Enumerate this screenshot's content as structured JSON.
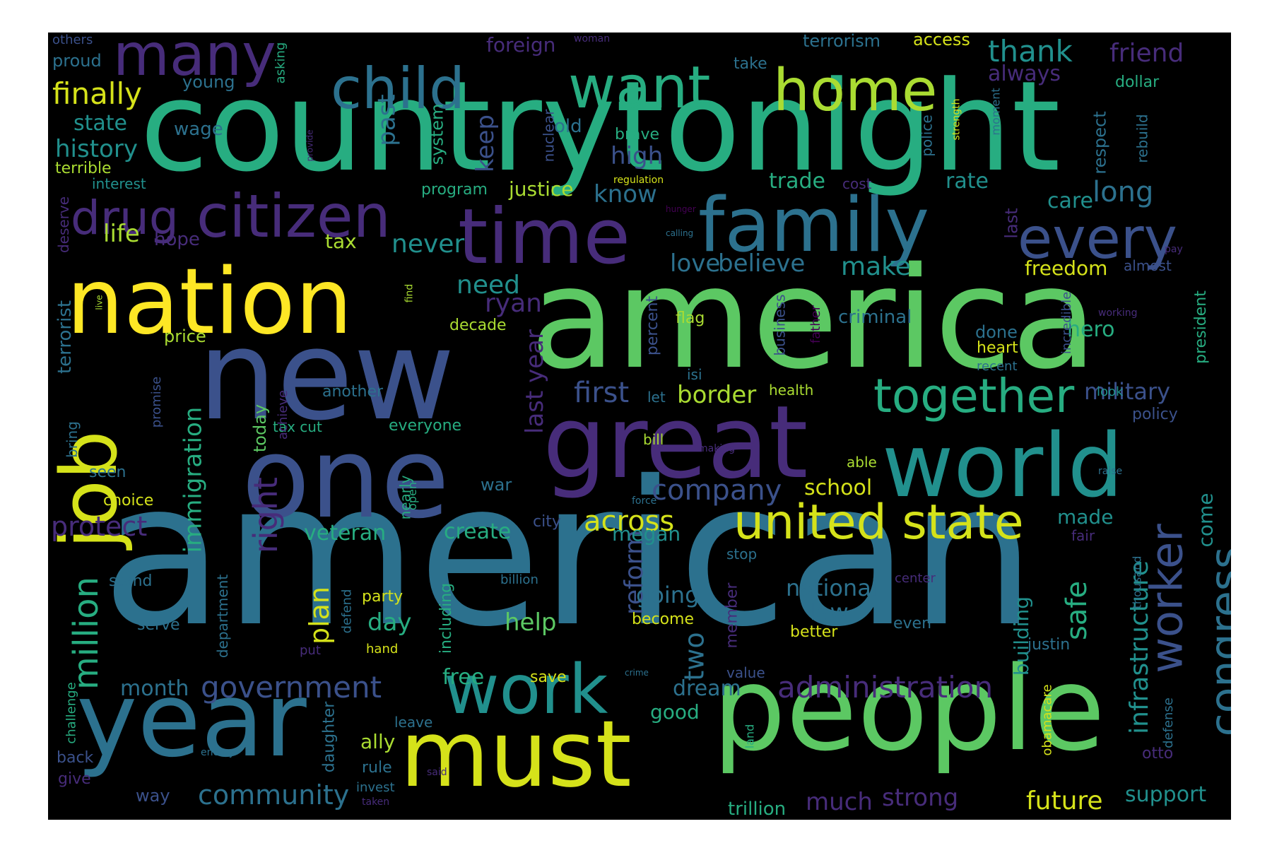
{
  "colors": {
    "background": "#000000",
    "page": "#ffffff",
    "palette": [
      "#440154",
      "#472c7a",
      "#3b518b",
      "#2c718e",
      "#21908d",
      "#27ad81",
      "#5cc863",
      "#aadc32",
      "#fde725"
    ]
  },
  "words": [
    {
      "text": "american",
      "color": "#2c718e"
    },
    {
      "text": "america",
      "color": "#5cc863"
    },
    {
      "text": "countrytonight",
      "color": "#27ad81"
    },
    {
      "text": "new",
      "color": "#3b518b"
    },
    {
      "text": "people",
      "color": "#5cc863"
    },
    {
      "text": "one",
      "color": "#3b518b"
    },
    {
      "text": "year",
      "color": "#2c718e"
    },
    {
      "text": "great",
      "color": "#472c7a"
    },
    {
      "text": "must",
      "color": "#d5e21a"
    },
    {
      "text": "nation",
      "color": "#fde725"
    },
    {
      "text": "world",
      "color": "#21908d"
    },
    {
      "text": "job",
      "color": "#d5e21a"
    },
    {
      "text": "family",
      "color": "#2c718e"
    },
    {
      "text": "time",
      "color": "#472c7a"
    },
    {
      "text": "work",
      "color": "#21908d"
    },
    {
      "text": "citizen",
      "color": "#472c7a"
    },
    {
      "text": "home",
      "color": "#aadc32"
    },
    {
      "text": "want",
      "color": "#27ad81"
    },
    {
      "text": "many",
      "color": "#472c7a"
    },
    {
      "text": "child",
      "color": "#2c718e"
    },
    {
      "text": "every",
      "color": "#3b518b"
    },
    {
      "text": "united state",
      "color": "#d5e21a"
    },
    {
      "text": "together",
      "color": "#27ad81"
    },
    {
      "text": "drug",
      "color": "#472c7a"
    },
    {
      "text": "worker",
      "color": "#3b518b"
    },
    {
      "text": "congress",
      "color": "#2c718e"
    },
    {
      "text": "million",
      "color": "#27ad81"
    },
    {
      "text": "right",
      "color": "#472c7a"
    },
    {
      "text": "administration",
      "color": "#472c7a"
    },
    {
      "text": "government",
      "color": "#3b518b"
    },
    {
      "text": "community",
      "color": "#2c718e"
    },
    {
      "text": "finally",
      "color": "#d5e21a"
    },
    {
      "text": "thank",
      "color": "#21908d"
    },
    {
      "text": "infrastructure",
      "color": "#21908d"
    },
    {
      "text": "safe",
      "color": "#27ad81"
    },
    {
      "text": "company",
      "color": "#3b518b"
    },
    {
      "text": "across",
      "color": "#d5e21a"
    },
    {
      "text": "first",
      "color": "#3b518b"
    },
    {
      "text": "protect",
      "color": "#472c7a"
    },
    {
      "text": "immigration",
      "color": "#27ad81"
    },
    {
      "text": "last year",
      "color": "#472c7a"
    },
    {
      "text": "reform",
      "color": "#3b518b"
    },
    {
      "text": "friend",
      "color": "#472c7a"
    },
    {
      "text": "long",
      "color": "#2c718e"
    },
    {
      "text": "future",
      "color": "#d5e21a"
    },
    {
      "text": "strong",
      "color": "#472c7a"
    },
    {
      "text": "much",
      "color": "#472c7a"
    },
    {
      "text": "support",
      "color": "#21908d"
    },
    {
      "text": "two",
      "color": "#2c718e"
    },
    {
      "text": "plan",
      "color": "#d5e21a"
    },
    {
      "text": "military",
      "color": "#3b518b"
    },
    {
      "text": "history",
      "color": "#21908d"
    },
    {
      "text": "border",
      "color": "#aadc32"
    },
    {
      "text": "need",
      "color": "#21908d"
    },
    {
      "text": "ryan",
      "color": "#472c7a"
    },
    {
      "text": "make",
      "color": "#21908d"
    },
    {
      "text": "love",
      "color": "#2c718e"
    },
    {
      "text": "believe",
      "color": "#2c718e"
    },
    {
      "text": "never",
      "color": "#21908d"
    },
    {
      "text": "life",
      "color": "#aadc32"
    },
    {
      "text": "high",
      "color": "#3b518b"
    },
    {
      "text": "know",
      "color": "#2c718e"
    },
    {
      "text": "keep",
      "color": "#3b518b"
    },
    {
      "text": "past",
      "color": "#2c718e"
    },
    {
      "text": "veteran",
      "color": "#27ad81"
    },
    {
      "text": "create",
      "color": "#27ad81"
    },
    {
      "text": "megan",
      "color": "#21908d"
    },
    {
      "text": "made",
      "color": "#21908d"
    },
    {
      "text": "come",
      "color": "#21908d"
    },
    {
      "text": "dream",
      "color": "#2c718e"
    },
    {
      "text": "going",
      "color": "#2c718e"
    },
    {
      "text": "help",
      "color": "#5cc863"
    },
    {
      "text": "day",
      "color": "#27ad81"
    },
    {
      "text": "national",
      "color": "#2c718e"
    },
    {
      "text": "law",
      "color": "#2c718e"
    },
    {
      "text": "building",
      "color": "#21908d"
    },
    {
      "text": "school",
      "color": "#d5e21a"
    },
    {
      "text": "state",
      "color": "#21908d"
    },
    {
      "text": "month",
      "color": "#2c718e"
    },
    {
      "text": "free",
      "color": "#27ad81"
    },
    {
      "text": "trade",
      "color": "#27ad81"
    },
    {
      "text": "rate",
      "color": "#21908d"
    },
    {
      "text": "care",
      "color": "#21908d"
    },
    {
      "text": "freedom",
      "color": "#d5e21a"
    },
    {
      "text": "hero",
      "color": "#27ad81"
    },
    {
      "text": "justice",
      "color": "#aadc32"
    },
    {
      "text": "always",
      "color": "#472c7a"
    },
    {
      "text": "wage",
      "color": "#2c718e"
    },
    {
      "text": "terrorist",
      "color": "#2c718e"
    },
    {
      "text": "good",
      "color": "#27ad81"
    },
    {
      "text": "tax",
      "color": "#aadc32"
    },
    {
      "text": "criminal",
      "color": "#2c718e"
    },
    {
      "text": "done",
      "color": "#2c718e"
    },
    {
      "text": "today",
      "color": "#5cc863"
    },
    {
      "text": "price",
      "color": "#aadc32"
    },
    {
      "text": "decade",
      "color": "#aadc32"
    },
    {
      "text": "hope",
      "color": "#472c7a"
    },
    {
      "text": "proud",
      "color": "#2c718e"
    },
    {
      "text": "young",
      "color": "#2c718e"
    },
    {
      "text": "system",
      "color": "#27ad81"
    },
    {
      "text": "old",
      "color": "#2c718e"
    },
    {
      "text": "brave",
      "color": "#27ad81"
    },
    {
      "text": "foreign",
      "color": "#472c7a"
    },
    {
      "text": "terrorism",
      "color": "#2c718e"
    },
    {
      "text": "access",
      "color": "#d5e21a"
    },
    {
      "text": "take",
      "color": "#2c718e"
    },
    {
      "text": "dollar",
      "color": "#27ad81"
    },
    {
      "text": "respect",
      "color": "#2c718e"
    },
    {
      "text": "rebuild",
      "color": "#2c718e"
    },
    {
      "text": "police",
      "color": "#2c718e"
    },
    {
      "text": "nuclear",
      "color": "#3b518b"
    },
    {
      "text": "terrible",
      "color": "#aadc32"
    },
    {
      "text": "interest",
      "color": "#21908d"
    },
    {
      "text": "program",
      "color": "#27ad81"
    },
    {
      "text": "last",
      "color": "#472c7a"
    },
    {
      "text": "flag",
      "color": "#aadc32"
    },
    {
      "text": "business",
      "color": "#3b518b"
    },
    {
      "text": "percent",
      "color": "#3b518b"
    },
    {
      "text": "father",
      "color": "#440154"
    },
    {
      "text": "heart",
      "color": "#d5e21a"
    },
    {
      "text": "recent",
      "color": "#2c718e"
    },
    {
      "text": "incredible",
      "color": "#3b518b"
    },
    {
      "text": "president",
      "color": "#27ad81"
    },
    {
      "text": "another",
      "color": "#2c718e"
    },
    {
      "text": "isi",
      "color": "#2c718e"
    },
    {
      "text": "let",
      "color": "#2c718e"
    },
    {
      "text": "health",
      "color": "#aadc32"
    },
    {
      "text": "look",
      "color": "#21908d"
    },
    {
      "text": "policy",
      "color": "#3b518b"
    },
    {
      "text": "tax cut",
      "color": "#27ad81"
    },
    {
      "text": "everyone",
      "color": "#27ad81"
    },
    {
      "text": "bill",
      "color": "#aadc32"
    },
    {
      "text": "able",
      "color": "#aadc32"
    },
    {
      "text": "war",
      "color": "#2c718e"
    },
    {
      "text": "seen",
      "color": "#2c718e"
    },
    {
      "text": "choice",
      "color": "#d5e21a"
    },
    {
      "text": "city",
      "color": "#3b518b"
    },
    {
      "text": "stand",
      "color": "#2c718e"
    },
    {
      "text": "serve",
      "color": "#2c718e"
    },
    {
      "text": "department",
      "color": "#2c718e"
    },
    {
      "text": "party",
      "color": "#d5e21a"
    },
    {
      "text": "billion",
      "color": "#2c718e"
    },
    {
      "text": "including",
      "color": "#27ad81"
    },
    {
      "text": "become",
      "color": "#d5e21a"
    },
    {
      "text": "better",
      "color": "#d5e21a"
    },
    {
      "text": "even",
      "color": "#2c718e"
    },
    {
      "text": "member",
      "color": "#472c7a"
    },
    {
      "text": "justin",
      "color": "#2c718e"
    },
    {
      "text": "hand",
      "color": "#d5e21a"
    },
    {
      "text": "put",
      "color": "#472c7a"
    },
    {
      "text": "save",
      "color": "#d5e21a"
    },
    {
      "text": "value",
      "color": "#3b518b"
    },
    {
      "text": "challenge",
      "color": "#27ad81"
    },
    {
      "text": "daughter",
      "color": "#2c718e"
    },
    {
      "text": "ally",
      "color": "#aadc32"
    },
    {
      "text": "leave",
      "color": "#2c718e"
    },
    {
      "text": "rule",
      "color": "#2c718e"
    },
    {
      "text": "back",
      "color": "#3b518b"
    },
    {
      "text": "give",
      "color": "#472c7a"
    },
    {
      "text": "way",
      "color": "#3b518b"
    },
    {
      "text": "invest",
      "color": "#2c718e"
    },
    {
      "text": "trillion",
      "color": "#27ad81"
    },
    {
      "text": "obamacare",
      "color": "#d5e21a"
    },
    {
      "text": "defense",
      "color": "#2c718e"
    },
    {
      "text": "otto",
      "color": "#472c7a"
    },
    {
      "text": "fair",
      "color": "#472c7a"
    },
    {
      "text": "deserve",
      "color": "#472c7a"
    },
    {
      "text": "bring",
      "color": "#2c718e"
    },
    {
      "text": "promise",
      "color": "#3b518b"
    },
    {
      "text": "achieve",
      "color": "#472c7a"
    },
    {
      "text": "others",
      "color": "#3b518b"
    },
    {
      "text": "asking",
      "color": "#27ad81"
    },
    {
      "text": "woman",
      "color": "#472c7a"
    },
    {
      "text": "strength",
      "color": "#d5e21a"
    },
    {
      "text": "moment",
      "color": "#2c718e"
    },
    {
      "text": "provide",
      "color": "#472c7a"
    },
    {
      "text": "regulation",
      "color": "#d5e21a"
    },
    {
      "text": "cost",
      "color": "#472c7a"
    },
    {
      "text": "hunger",
      "color": "#440154"
    },
    {
      "text": "calling",
      "color": "#2c718e"
    },
    {
      "text": "pay",
      "color": "#472c7a"
    },
    {
      "text": "almost",
      "color": "#3b518b"
    },
    {
      "text": "working",
      "color": "#472c7a"
    },
    {
      "text": "live",
      "color": "#aadc32"
    },
    {
      "text": "find",
      "color": "#aadc32"
    },
    {
      "text": "making",
      "color": "#472c7a"
    },
    {
      "text": "raise",
      "color": "#2c718e"
    },
    {
      "text": "force",
      "color": "#2c718e"
    },
    {
      "text": "nearly",
      "color": "#27ad81"
    },
    {
      "text": "open",
      "color": "#27ad81"
    },
    {
      "text": "stop",
      "color": "#2c718e"
    },
    {
      "text": "center",
      "color": "#472c7a"
    },
    {
      "text": "thousand",
      "color": "#2c718e"
    },
    {
      "text": "crime",
      "color": "#2c718e"
    },
    {
      "text": "land",
      "color": "#27ad81"
    },
    {
      "text": "enemy",
      "color": "#2c718e"
    },
    {
      "text": "said",
      "color": "#472c7a"
    },
    {
      "text": "taken",
      "color": "#472c7a"
    },
    {
      "text": "defend",
      "color": "#2c718e"
    }
  ]
}
